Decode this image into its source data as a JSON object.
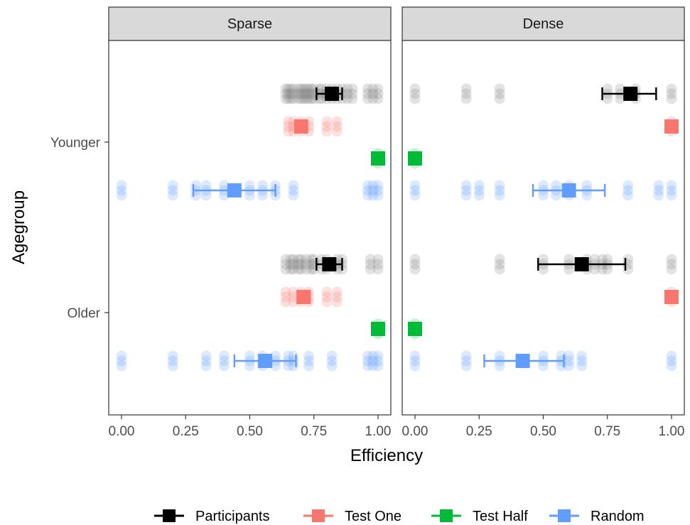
{
  "chart_data": {
    "type": "scatter",
    "xlabel": "Efficiency",
    "ylabel": "Agegroup",
    "xlim": [
      0,
      1
    ],
    "x_ticks": [
      "0.00",
      "0.25",
      "0.50",
      "0.75",
      "1.00"
    ],
    "y_categories": [
      "Younger",
      "Older"
    ],
    "facets": [
      "Sparse",
      "Dense"
    ],
    "legend_position": "bottom",
    "series": [
      {
        "name": "Participants",
        "color": "#000000",
        "point_color": "#7f7f7f"
      },
      {
        "name": "Test One",
        "color": "#F8766D",
        "point_color": "#F8766D"
      },
      {
        "name": "Test Half",
        "color": "#00BA38",
        "point_color": "#00BA38"
      },
      {
        "name": "Random",
        "color": "#619CFF",
        "point_color": "#619CFF"
      }
    ],
    "panels": [
      {
        "facet": "Sparse",
        "groups": [
          {
            "agegroup": "Younger",
            "series": "Participants",
            "mean": 0.82,
            "ci": [
              0.76,
              0.86
            ],
            "points": [
              0.64,
              0.65,
              0.66,
              0.67,
              0.69,
              0.7,
              0.71,
              0.72,
              0.73,
              0.74,
              0.75,
              0.77,
              0.78,
              0.8,
              0.82,
              0.84,
              0.86,
              0.88,
              0.9,
              0.96,
              0.98,
              1.0
            ]
          },
          {
            "agegroup": "Younger",
            "series": "Test One",
            "mean": 0.7,
            "ci": [
              0.7,
              0.7
            ],
            "points": [
              0.65,
              0.67,
              0.7,
              0.73,
              0.8,
              0.84
            ]
          },
          {
            "agegroup": "Younger",
            "series": "Test Half",
            "mean": 1.0,
            "ci": [
              1.0,
              1.0
            ],
            "points": [
              1.0
            ]
          },
          {
            "agegroup": "Younger",
            "series": "Random",
            "mean": 0.44,
            "ci": [
              0.28,
              0.6
            ],
            "points": [
              0.0,
              0.2,
              0.29,
              0.33,
              0.4,
              0.5,
              0.55,
              0.6,
              0.67,
              0.96,
              0.98,
              1.0
            ]
          },
          {
            "agegroup": "Older",
            "series": "Participants",
            "mean": 0.81,
            "ci": [
              0.76,
              0.86
            ],
            "points": [
              0.64,
              0.66,
              0.67,
              0.69,
              0.7,
              0.72,
              0.74,
              0.75,
              0.78,
              0.8,
              0.84,
              0.86,
              0.97,
              1.0
            ]
          },
          {
            "agegroup": "Older",
            "series": "Test One",
            "mean": 0.71,
            "ci": [
              0.71,
              0.71
            ],
            "points": [
              0.64,
              0.67,
              0.7,
              0.73,
              0.8,
              0.84
            ]
          },
          {
            "agegroup": "Older",
            "series": "Test Half",
            "mean": 1.0,
            "ci": [
              1.0,
              1.0
            ],
            "points": [
              1.0
            ]
          },
          {
            "agegroup": "Older",
            "series": "Random",
            "mean": 0.56,
            "ci": [
              0.44,
              0.68
            ],
            "points": [
              0.0,
              0.2,
              0.33,
              0.4,
              0.5,
              0.55,
              0.6,
              0.65,
              0.67,
              0.73,
              0.82,
              0.96,
              0.98,
              1.0
            ]
          }
        ]
      },
      {
        "facet": "Dense",
        "groups": [
          {
            "agegroup": "Younger",
            "series": "Participants",
            "mean": 0.84,
            "ci": [
              0.73,
              0.94
            ],
            "points": [
              0.0,
              0.2,
              0.33,
              0.75,
              0.8,
              0.86,
              1.0
            ]
          },
          {
            "agegroup": "Younger",
            "series": "Test One",
            "mean": 1.0,
            "ci": [
              1.0,
              1.0
            ],
            "points": [
              1.0
            ]
          },
          {
            "agegroup": "Younger",
            "series": "Test Half",
            "mean": 0.0,
            "ci": [
              0.0,
              0.0
            ],
            "points": [
              0.0
            ]
          },
          {
            "agegroup": "Younger",
            "series": "Random",
            "mean": 0.6,
            "ci": [
              0.46,
              0.74
            ],
            "points": [
              0.0,
              0.2,
              0.25,
              0.33,
              0.5,
              0.55,
              0.6,
              0.67,
              0.83,
              0.95,
              1.0
            ]
          },
          {
            "agegroup": "Older",
            "series": "Participants",
            "mean": 0.65,
            "ci": [
              0.48,
              0.82
            ],
            "points": [
              0.0,
              0.33,
              0.5,
              0.6,
              0.67,
              0.7,
              0.73,
              0.75,
              0.83,
              1.0
            ]
          },
          {
            "agegroup": "Older",
            "series": "Test One",
            "mean": 1.0,
            "ci": [
              1.0,
              1.0
            ],
            "points": [
              1.0
            ]
          },
          {
            "agegroup": "Older",
            "series": "Test Half",
            "mean": 0.0,
            "ci": [
              0.0,
              0.0
            ],
            "points": [
              0.0
            ]
          },
          {
            "agegroup": "Older",
            "series": "Random",
            "mean": 0.42,
            "ci": [
              0.27,
              0.58
            ],
            "points": [
              0.0,
              0.2,
              0.33,
              0.5,
              0.57,
              0.6,
              0.65,
              1.0
            ]
          }
        ]
      }
    ]
  }
}
